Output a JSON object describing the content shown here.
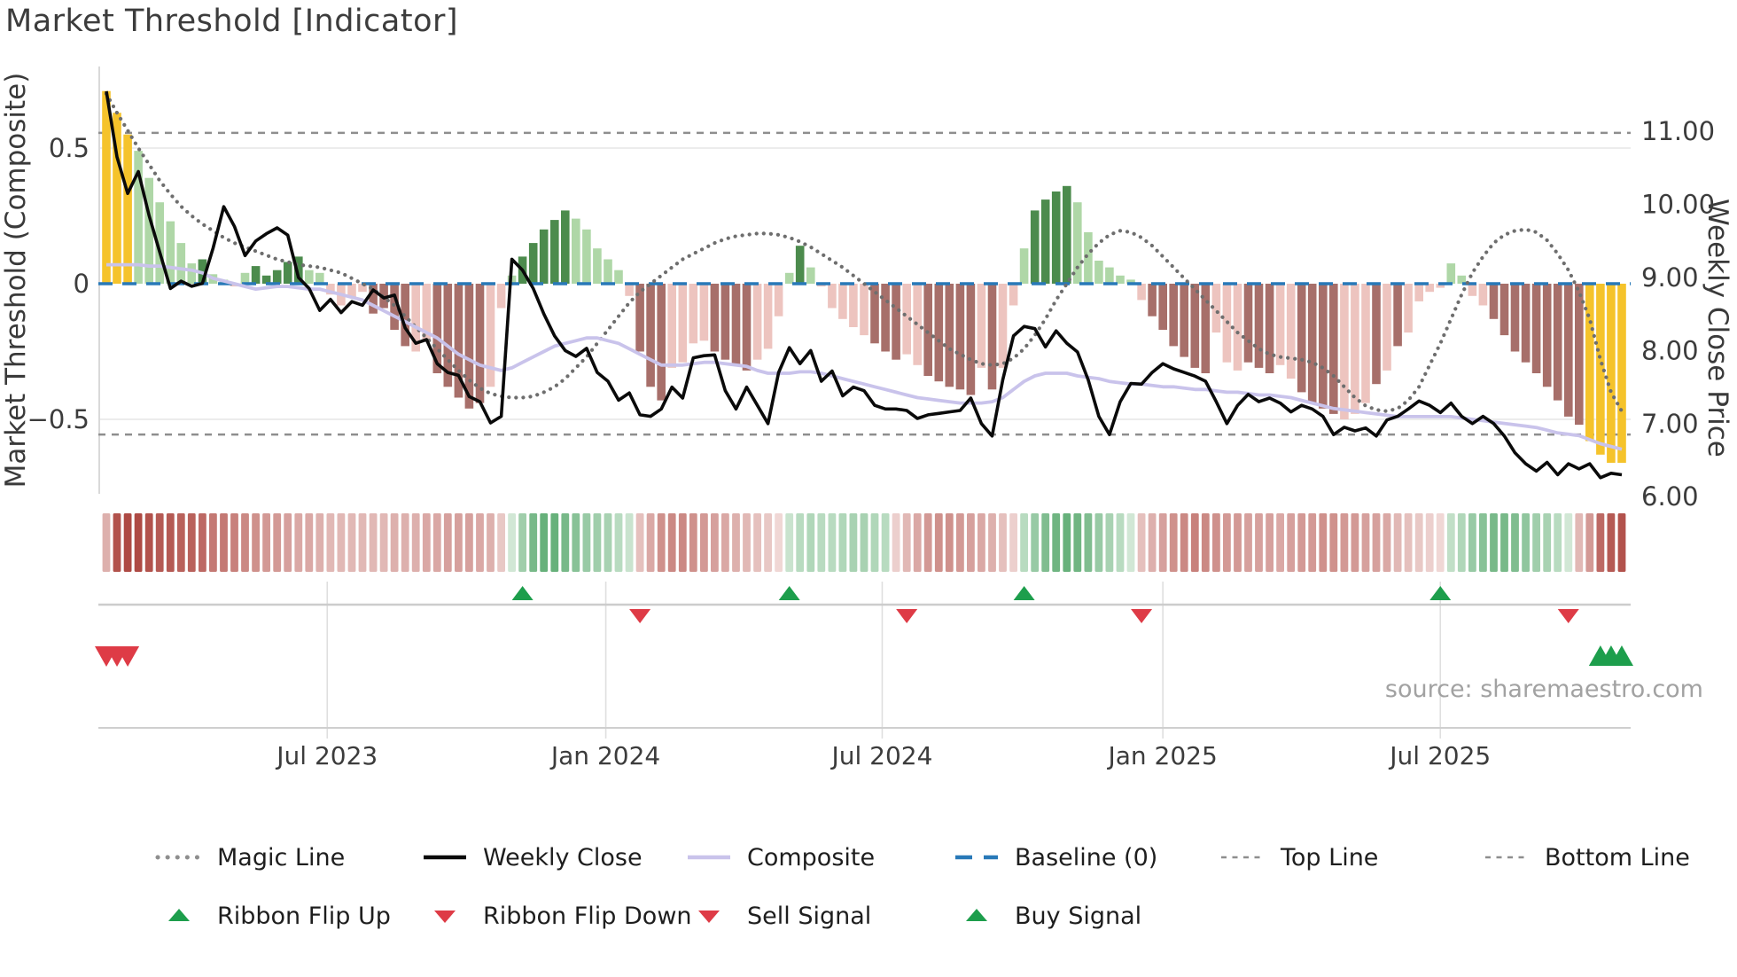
{
  "title": "Market Threshold [Indicator]",
  "source_text": "source: sharemaestro.com",
  "axes": {
    "left": {
      "title": "Market Threshold (Composite)",
      "ticks": [
        "0.5",
        "0",
        "−0.5"
      ],
      "tick_values": [
        0.5,
        0,
        -0.5
      ]
    },
    "right": {
      "title": "Weekly Close Price",
      "ticks": [
        "11.00",
        "10.00",
        "9.00",
        "8.00",
        "7.00",
        "6.00"
      ],
      "tick_values": [
        11,
        10,
        9,
        8,
        7,
        6
      ]
    },
    "x": {
      "ticks": [
        "Jul 2023",
        "Jan 2024",
        "Jul 2024",
        "Jan 2025",
        "Jul 2025"
      ],
      "tick_weeks": [
        20.7,
        46.8,
        72.7,
        99.0,
        125.0
      ]
    }
  },
  "legend": {
    "rows": [
      [
        {
          "label": "Magic Line",
          "swatch": "dots"
        },
        {
          "label": "Weekly Close",
          "swatch": "solid-black"
        },
        {
          "label": "Composite",
          "swatch": "solid-lavender"
        },
        {
          "label": "Baseline (0)",
          "swatch": "dash-blue"
        },
        {
          "label": "Top Line",
          "swatch": "dash-gray"
        },
        {
          "label": "Bottom Line",
          "swatch": "dash-gray"
        }
      ],
      [
        {
          "label": "Ribbon Flip Up",
          "swatch": "tri-up"
        },
        {
          "label": "Ribbon Flip Down",
          "swatch": "tri-down"
        },
        {
          "label": "Sell Signal",
          "swatch": "tri-down"
        },
        {
          "label": "Buy Signal",
          "swatch": "tri-up"
        }
      ]
    ]
  },
  "chart_data": {
    "type": "combo-bar-line",
    "x_unit": "weeks (weekly bars, ~Feb 2023 to ~Oct 2025)",
    "n_points": 143,
    "ylim_left": [
      -0.78,
      0.8
    ],
    "ylim_right": [
      6.0,
      11.9
    ],
    "x_ticks_weeks": [
      20.7,
      46.8,
      72.7,
      99.0,
      125.0
    ],
    "hlines": {
      "baseline": 0,
      "top_line": 0.556,
      "bottom_line": -0.556,
      "grid": [
        0.5,
        -0.5
      ]
    },
    "series": [
      {
        "name": "Market Threshold Histogram",
        "type": "bar",
        "axis": "left",
        "values": [
          0.71,
          0.63,
          0.55,
          0.49,
          0.39,
          0.3,
          0.23,
          0.15,
          0.075,
          0.09,
          0.035,
          0.015,
          -0.01,
          0.04,
          0.065,
          0.03,
          0.05,
          0.08,
          0.1,
          0.05,
          0.04,
          -0.04,
          -0.08,
          -0.05,
          -0.03,
          -0.11,
          -0.09,
          -0.17,
          -0.23,
          -0.25,
          -0.21,
          -0.33,
          -0.38,
          -0.42,
          -0.46,
          -0.44,
          -0.38,
          -0.09,
          0.03,
          0.1,
          0.15,
          0.2,
          0.235,
          0.27,
          0.24,
          0.2,
          0.13,
          0.09,
          0.05,
          -0.045,
          -0.25,
          -0.38,
          -0.43,
          -0.31,
          -0.29,
          -0.22,
          -0.21,
          -0.25,
          -0.28,
          -0.3,
          -0.32,
          -0.28,
          -0.24,
          -0.12,
          0.04,
          0.14,
          0.06,
          -0.01,
          -0.09,
          -0.13,
          -0.16,
          -0.19,
          -0.22,
          -0.25,
          -0.28,
          -0.26,
          -0.3,
          -0.34,
          -0.36,
          -0.38,
          -0.39,
          -0.41,
          -0.31,
          -0.39,
          -0.31,
          -0.08,
          0.13,
          0.27,
          0.31,
          0.34,
          0.36,
          0.3,
          0.19,
          0.085,
          0.06,
          0.03,
          0.015,
          -0.06,
          -0.12,
          -0.17,
          -0.23,
          -0.27,
          -0.31,
          -0.33,
          -0.18,
          -0.29,
          -0.32,
          -0.29,
          -0.31,
          -0.33,
          -0.3,
          -0.35,
          -0.4,
          -0.44,
          -0.46,
          -0.48,
          -0.5,
          -0.48,
          -0.44,
          -0.37,
          -0.32,
          -0.23,
          -0.18,
          -0.065,
          -0.03,
          -0.015,
          0.075,
          0.03,
          -0.045,
          -0.08,
          -0.13,
          -0.19,
          -0.25,
          -0.29,
          -0.33,
          -0.38,
          -0.43,
          -0.49,
          -0.52,
          -0.58,
          -0.63,
          -0.66,
          -0.66
        ],
        "palette": [
          "y",
          "y",
          "y",
          "lg",
          "lg",
          "lg",
          "lg",
          "lg",
          "lg",
          "dg",
          "lg",
          "lg",
          "lr",
          "lg",
          "dg",
          "dg",
          "dg",
          "dg",
          "dg",
          "lg",
          "lg",
          "lr",
          "lr",
          "lr",
          "lr",
          "dr",
          "dr",
          "dr",
          "dr",
          "lr",
          "lr",
          "dr",
          "dr",
          "dr",
          "dr",
          "dr",
          "lr",
          "lr",
          "lg",
          "dg",
          "dg",
          "dg",
          "dg",
          "dg",
          "lg",
          "lg",
          "lg",
          "lg",
          "lg",
          "lr",
          "dr",
          "dr",
          "dr",
          "lr",
          "lr",
          "lr",
          "lr",
          "dr",
          "dr",
          "dr",
          "dr",
          "lr",
          "lr",
          "lr",
          "lg",
          "dg",
          "lg",
          "lr",
          "lr",
          "lr",
          "lr",
          "lr",
          "dr",
          "dr",
          "dr",
          "lr",
          "lr",
          "dr",
          "dr",
          "dr",
          "dr",
          "dr",
          "lr",
          "dr",
          "lr",
          "lr",
          "lg",
          "dg",
          "dg",
          "dg",
          "dg",
          "lg",
          "lg",
          "lg",
          "lg",
          "lg",
          "lg",
          "lr",
          "dr",
          "dr",
          "dr",
          "dr",
          "dr",
          "dr",
          "lr",
          "lr",
          "lr",
          "dr",
          "dr",
          "dr",
          "lr",
          "lr",
          "dr",
          "dr",
          "dr",
          "dr",
          "lr",
          "lr",
          "lr",
          "dr",
          "lr",
          "dr",
          "lr",
          "lr",
          "lr",
          "lr",
          "lg",
          "lg",
          "lr",
          "lr",
          "dr",
          "dr",
          "dr",
          "dr",
          "dr",
          "dr",
          "dr",
          "dr",
          "dr",
          "y",
          "y",
          "y",
          "y"
        ]
      },
      {
        "name": "Weekly Close",
        "type": "line",
        "axis": "right",
        "values": [
          11.55,
          10.65,
          10.15,
          10.45,
          9.85,
          9.35,
          8.85,
          8.95,
          8.88,
          8.92,
          9.4,
          9.97,
          9.7,
          9.3,
          9.5,
          9.6,
          9.68,
          9.58,
          9.0,
          8.85,
          8.55,
          8.7,
          8.52,
          8.67,
          8.62,
          8.83,
          8.72,
          8.76,
          8.31,
          8.1,
          8.15,
          7.82,
          7.7,
          7.66,
          7.37,
          7.3,
          7.01,
          7.1,
          9.25,
          9.1,
          8.85,
          8.5,
          8.2,
          8.0,
          7.92,
          8.03,
          7.7,
          7.58,
          7.32,
          7.42,
          7.12,
          7.1,
          7.2,
          7.5,
          7.35,
          7.9,
          7.93,
          7.94,
          7.45,
          7.2,
          7.5,
          7.25,
          7.0,
          7.7,
          8.04,
          7.82,
          8.0,
          7.58,
          7.72,
          7.38,
          7.5,
          7.45,
          7.25,
          7.2,
          7.2,
          7.18,
          7.07,
          7.12,
          7.14,
          7.16,
          7.18,
          7.35,
          7.0,
          6.83,
          7.6,
          8.2,
          8.33,
          8.3,
          8.05,
          8.27,
          8.1,
          7.98,
          7.6,
          7.1,
          6.85,
          7.3,
          7.55,
          7.54,
          7.7,
          7.82,
          7.75,
          7.7,
          7.65,
          7.58,
          7.3,
          7.0,
          7.25,
          7.4,
          7.3,
          7.35,
          7.28,
          7.16,
          7.25,
          7.2,
          7.1,
          6.85,
          6.95,
          6.9,
          6.94,
          6.83,
          7.05,
          7.1,
          7.2,
          7.31,
          7.25,
          7.15,
          7.28,
          7.1,
          7.0,
          7.1,
          7.0,
          6.83,
          6.6,
          6.45,
          6.35,
          6.47,
          6.3,
          6.45,
          6.38,
          6.45,
          6.26,
          6.32,
          6.3
        ]
      },
      {
        "name": "Composite",
        "type": "line",
        "axis": "left",
        "values": [
          0.07,
          0.07,
          0.07,
          0.07,
          0.065,
          0.065,
          0.06,
          0.055,
          0.05,
          0.04,
          0.02,
          0.01,
          0.0,
          -0.01,
          -0.02,
          -0.015,
          -0.01,
          -0.01,
          -0.015,
          -0.02,
          -0.02,
          -0.03,
          -0.04,
          -0.05,
          -0.06,
          -0.08,
          -0.1,
          -0.12,
          -0.14,
          -0.16,
          -0.18,
          -0.2,
          -0.23,
          -0.26,
          -0.28,
          -0.3,
          -0.31,
          -0.32,
          -0.31,
          -0.29,
          -0.27,
          -0.25,
          -0.23,
          -0.22,
          -0.21,
          -0.2,
          -0.2,
          -0.21,
          -0.22,
          -0.24,
          -0.26,
          -0.28,
          -0.3,
          -0.3,
          -0.3,
          -0.295,
          -0.29,
          -0.29,
          -0.295,
          -0.3,
          -0.305,
          -0.32,
          -0.33,
          -0.33,
          -0.33,
          -0.325,
          -0.325,
          -0.33,
          -0.34,
          -0.35,
          -0.36,
          -0.37,
          -0.38,
          -0.39,
          -0.4,
          -0.41,
          -0.42,
          -0.425,
          -0.43,
          -0.435,
          -0.44,
          -0.44,
          -0.44,
          -0.435,
          -0.42,
          -0.39,
          -0.36,
          -0.34,
          -0.33,
          -0.33,
          -0.33,
          -0.34,
          -0.345,
          -0.35,
          -0.36,
          -0.365,
          -0.37,
          -0.37,
          -0.375,
          -0.38,
          -0.38,
          -0.385,
          -0.39,
          -0.39,
          -0.395,
          -0.4,
          -0.4,
          -0.405,
          -0.41,
          -0.41,
          -0.415,
          -0.42,
          -0.43,
          -0.44,
          -0.45,
          -0.46,
          -0.465,
          -0.47,
          -0.475,
          -0.48,
          -0.485,
          -0.49,
          -0.49,
          -0.49,
          -0.49,
          -0.49,
          -0.49,
          -0.495,
          -0.5,
          -0.505,
          -0.51,
          -0.515,
          -0.52,
          -0.525,
          -0.53,
          -0.54,
          -0.55,
          -0.555,
          -0.56,
          -0.575,
          -0.59,
          -0.6,
          -0.61
        ]
      },
      {
        "name": "Magic Line",
        "type": "line",
        "axis": "left",
        "style": "dotted",
        "values": [
          0.7,
          0.63,
          0.565,
          0.5,
          0.44,
          0.38,
          0.33,
          0.285,
          0.25,
          0.22,
          0.195,
          0.17,
          0.15,
          0.135,
          0.12,
          0.105,
          0.09,
          0.08,
          0.07,
          0.065,
          0.06,
          0.05,
          0.04,
          0.02,
          0.0,
          -0.02,
          -0.05,
          -0.08,
          -0.12,
          -0.16,
          -0.2,
          -0.24,
          -0.28,
          -0.32,
          -0.355,
          -0.385,
          -0.405,
          -0.415,
          -0.42,
          -0.42,
          -0.415,
          -0.4,
          -0.38,
          -0.35,
          -0.31,
          -0.27,
          -0.22,
          -0.17,
          -0.12,
          -0.07,
          -0.03,
          0.0,
          0.03,
          0.06,
          0.09,
          0.11,
          0.13,
          0.15,
          0.165,
          0.175,
          0.18,
          0.185,
          0.185,
          0.18,
          0.17,
          0.155,
          0.135,
          0.11,
          0.085,
          0.06,
          0.03,
          0.0,
          -0.03,
          -0.06,
          -0.09,
          -0.12,
          -0.15,
          -0.18,
          -0.21,
          -0.24,
          -0.26,
          -0.28,
          -0.295,
          -0.3,
          -0.295,
          -0.275,
          -0.24,
          -0.19,
          -0.13,
          -0.06,
          0.0,
          0.06,
          0.11,
          0.15,
          0.18,
          0.195,
          0.19,
          0.17,
          0.14,
          0.1,
          0.06,
          0.02,
          -0.02,
          -0.06,
          -0.1,
          -0.14,
          -0.18,
          -0.21,
          -0.24,
          -0.26,
          -0.27,
          -0.275,
          -0.28,
          -0.29,
          -0.31,
          -0.34,
          -0.38,
          -0.42,
          -0.45,
          -0.465,
          -0.47,
          -0.46,
          -0.43,
          -0.38,
          -0.3,
          -0.22,
          -0.13,
          -0.04,
          0.04,
          0.1,
          0.15,
          0.18,
          0.195,
          0.2,
          0.19,
          0.16,
          0.11,
          0.05,
          -0.03,
          -0.13,
          -0.28,
          -0.4,
          -0.47
        ]
      }
    ],
    "ribbon": {
      "name": "Trend Ribbon",
      "values": [
        -0.35,
        -0.95,
        -1.0,
        -1.0,
        -0.95,
        -0.9,
        -0.9,
        -0.85,
        -0.85,
        -0.8,
        -0.7,
        -0.7,
        -0.65,
        -0.6,
        -0.55,
        -0.5,
        -0.5,
        -0.45,
        -0.4,
        -0.4,
        -0.35,
        -0.3,
        -0.3,
        -0.3,
        -0.3,
        -0.3,
        -0.3,
        -0.35,
        -0.35,
        -0.35,
        -0.4,
        -0.4,
        -0.45,
        -0.45,
        -0.45,
        -0.4,
        -0.35,
        -0.2,
        0.15,
        0.45,
        0.7,
        0.8,
        0.8,
        0.7,
        0.6,
        0.5,
        0.45,
        0.4,
        0.3,
        0.2,
        -0.25,
        -0.4,
        -0.55,
        -0.6,
        -0.6,
        -0.55,
        -0.5,
        -0.45,
        -0.4,
        -0.35,
        -0.3,
        -0.25,
        -0.2,
        -0.1,
        0.2,
        0.3,
        0.35,
        0.3,
        0.3,
        0.35,
        0.4,
        0.4,
        0.35,
        0.3,
        -0.15,
        -0.3,
        -0.4,
        -0.5,
        -0.55,
        -0.55,
        -0.5,
        -0.45,
        -0.4,
        -0.35,
        -0.25,
        -0.15,
        0.3,
        0.5,
        0.65,
        0.75,
        0.8,
        0.75,
        0.65,
        0.5,
        0.4,
        0.3,
        0.15,
        -0.25,
        -0.35,
        -0.45,
        -0.55,
        -0.6,
        -0.65,
        -0.6,
        -0.55,
        -0.5,
        -0.5,
        -0.45,
        -0.45,
        -0.45,
        -0.4,
        -0.45,
        -0.5,
        -0.5,
        -0.55,
        -0.55,
        -0.5,
        -0.5,
        -0.45,
        -0.45,
        -0.4,
        -0.3,
        -0.25,
        -0.2,
        -0.15,
        -0.1,
        0.25,
        0.35,
        0.5,
        0.6,
        0.7,
        0.7,
        0.65,
        0.55,
        0.45,
        0.4,
        0.3,
        0.15,
        -0.3,
        -0.5,
        -0.8,
        -0.9,
        -0.95
      ]
    },
    "signals": {
      "ribbon_flip_up_weeks": [
        39,
        64,
        86,
        125
      ],
      "ribbon_flip_down_weeks": [
        50,
        75,
        97,
        137
      ],
      "sell_signal_weeks": [
        0,
        1,
        2
      ],
      "buy_signal_weeks": [
        140,
        141,
        142
      ]
    },
    "colors": {
      "yellow": "#F5C32B",
      "light_green": "#AFD7A7",
      "dark_green": "#4C8B4D",
      "light_red": "#EDC4BF",
      "dark_red": "#A76F6A",
      "weekly_close": "#0A0A0A",
      "composite": "#C9C3EB",
      "magic": "#6E6E6E",
      "baseline": "#2879B8",
      "top_bottom": "#8E8E8E",
      "signal_green": "#1D9E4C",
      "signal_red": "#DE3B46",
      "ribbon_red_light": "#F7E7E5",
      "ribbon_red_dark": "#AE4A44",
      "ribbon_green_light": "#E9F4EA",
      "ribbon_green_dark": "#47A05F"
    }
  }
}
